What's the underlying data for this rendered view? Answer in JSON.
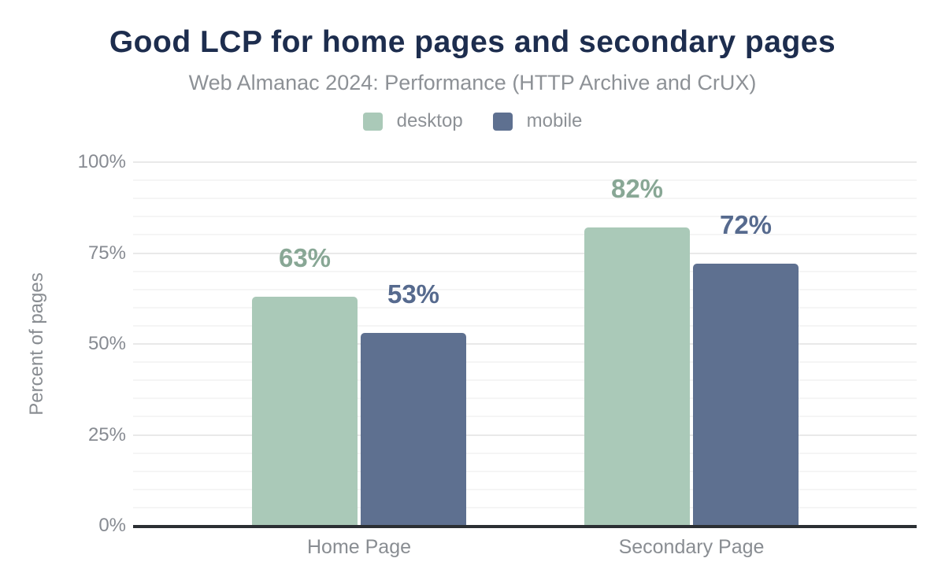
{
  "header": {
    "title": "Good LCP for home pages and secondary pages",
    "subtitle": "Web Almanac 2024: Performance (HTTP Archive and CrUX)"
  },
  "colors": {
    "title_text": "#1d2d4e",
    "muted_text": "#8d9196",
    "axis_line": "#2b2f33",
    "grid_major": "#e9e9e9",
    "grid_minor": "#f5f5f5"
  },
  "chart_data": {
    "type": "bar",
    "title": "Good LCP for home pages and secondary pages",
    "subtitle": "Web Almanac 2024: Performance (HTTP Archive and CrUX)",
    "categories": [
      "Home Page",
      "Secondary Page"
    ],
    "series": [
      {
        "name": "desktop",
        "values": [
          63,
          82
        ],
        "color": "#aac9b8",
        "label_color": "#88a795"
      },
      {
        "name": "mobile",
        "values": [
          53,
          72
        ],
        "color": "#5e7090",
        "label_color": "#566a8e"
      }
    ],
    "value_labels": [
      {
        "desktop": "63%",
        "mobile": "53%"
      },
      {
        "desktop": "82%",
        "mobile": "72%"
      }
    ],
    "xlabel": "",
    "ylabel": "Percent of pages",
    "ylim": [
      0,
      100
    ],
    "y_ticks": [
      {
        "value": 0,
        "label": "0%"
      },
      {
        "value": 25,
        "label": "25%"
      },
      {
        "value": 50,
        "label": "50%"
      },
      {
        "value": 75,
        "label": "75%"
      },
      {
        "value": 100,
        "label": "100%"
      }
    ],
    "y_major_step": 25,
    "y_minor_step": 5,
    "grid": true,
    "legend_position": "top"
  }
}
